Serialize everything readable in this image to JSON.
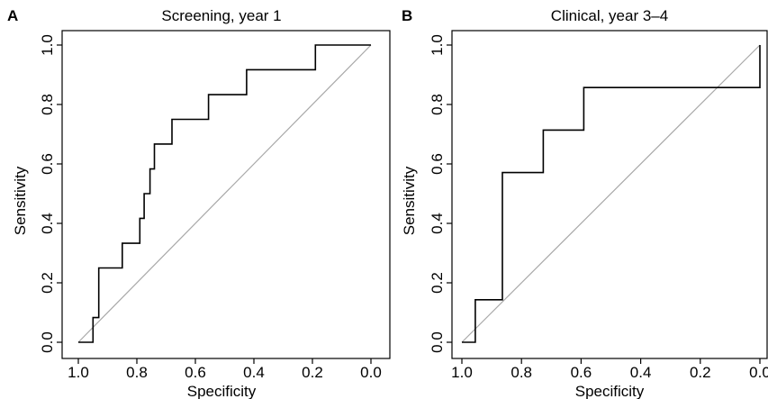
{
  "chart_data": [
    {
      "type": "line",
      "panel_letter": "A",
      "title": "Screening, year 1",
      "xlabel": "Specificity",
      "ylabel": "Sensitivity",
      "xlim": [
        1.0,
        0.0
      ],
      "ylim": [
        0.0,
        1.0
      ],
      "x_reversed": true,
      "xticks": [
        "1.0",
        "0.8",
        "0.6",
        "0.4",
        "0.2",
        "0.0"
      ],
      "yticks": [
        "0.0",
        "0.2",
        "0.4",
        "0.6",
        "0.8",
        "1.0"
      ],
      "reference_line": [
        [
          1.0,
          0.0
        ],
        [
          0.0,
          1.0
        ]
      ],
      "series": [
        {
          "x": [
            1.0,
            0.95,
            0.95,
            0.93,
            0.93,
            0.85,
            0.85,
            0.79,
            0.79,
            0.775,
            0.775,
            0.755,
            0.755,
            0.74,
            0.74,
            0.68,
            0.68,
            0.555,
            0.555,
            0.425,
            0.425,
            0.19,
            0.19,
            0.0
          ],
          "y": [
            0.0,
            0.0,
            0.083,
            0.083,
            0.25,
            0.25,
            0.333,
            0.333,
            0.417,
            0.417,
            0.5,
            0.5,
            0.583,
            0.583,
            0.667,
            0.667,
            0.75,
            0.75,
            0.833,
            0.833,
            0.917,
            0.917,
            1.0,
            1.0
          ]
        }
      ]
    },
    {
      "type": "line",
      "panel_letter": "B",
      "title": "Clinical, year 3–4",
      "xlabel": "Specificity",
      "ylabel": "Sensitivity",
      "xlim": [
        1.0,
        0.0
      ],
      "ylim": [
        0.0,
        1.0
      ],
      "x_reversed": true,
      "xticks": [
        "1.0",
        "0.8",
        "0.6",
        "0.4",
        "0.2",
        "0.0"
      ],
      "yticks": [
        "0.0",
        "0.2",
        "0.4",
        "0.6",
        "0.8",
        "1.0"
      ],
      "reference_line": [
        [
          1.0,
          0.0
        ],
        [
          0.0,
          1.0
        ]
      ],
      "series": [
        {
          "x": [
            1.0,
            0.955,
            0.955,
            0.864,
            0.864,
            0.727,
            0.727,
            0.591,
            0.591,
            0.0,
            0.0
          ],
          "y": [
            0.0,
            0.0,
            0.143,
            0.143,
            0.571,
            0.571,
            0.714,
            0.714,
            0.857,
            0.857,
            1.0
          ]
        }
      ]
    }
  ]
}
